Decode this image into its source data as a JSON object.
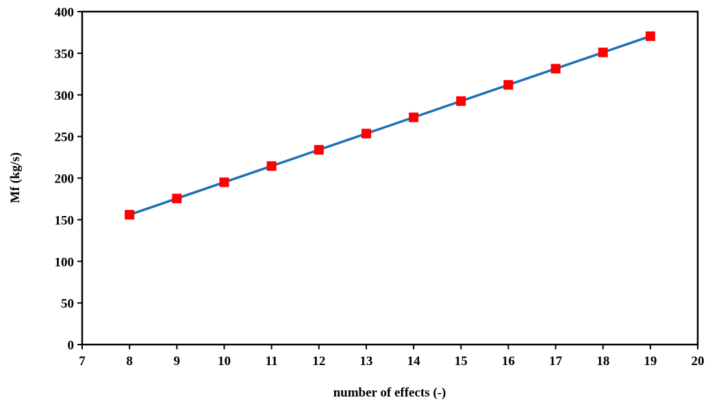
{
  "chart_data": {
    "type": "line",
    "title": "",
    "xlabel": "number of effects (-)",
    "ylabel": "Mf (kg/s)",
    "xlim": [
      7,
      20
    ],
    "ylim": [
      0,
      400
    ],
    "xticks": [
      7,
      8,
      9,
      10,
      11,
      12,
      13,
      14,
      15,
      16,
      17,
      18,
      19,
      20
    ],
    "yticks": [
      0,
      50,
      100,
      150,
      200,
      250,
      300,
      350,
      400
    ],
    "grid": false,
    "legend": "none",
    "series": [
      {
        "line_color": "#1f6fb4",
        "marker_color": "#ff0000",
        "marker": "square",
        "x": [
          8,
          9,
          10,
          11,
          12,
          13,
          14,
          15,
          16,
          17,
          18,
          19
        ],
        "y": [
          156,
          175.5,
          195,
          214.5,
          234,
          253.5,
          273,
          292.5,
          312,
          331.5,
          351,
          370.5
        ]
      }
    ]
  }
}
